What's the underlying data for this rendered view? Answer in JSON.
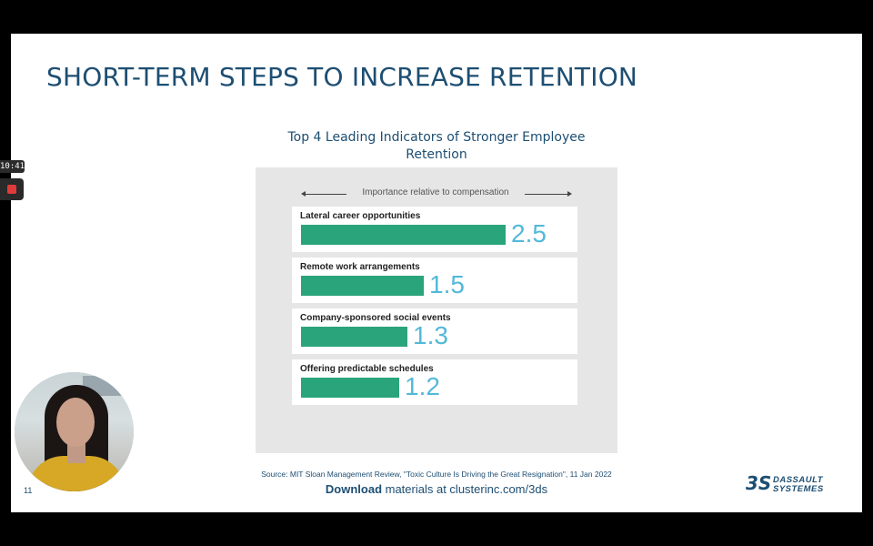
{
  "recorder": {
    "timer": "10:41"
  },
  "slide": {
    "title": "SHORT-TERM STEPS TO INCREASE RETENTION",
    "chart_heading_line1": "Top 4 Leading Indicators of Stronger Employee",
    "chart_heading_line2": "Retention",
    "page_number": "11",
    "source": "Source: MIT Sloan Management Review, \"Toxic Culture Is Driving the Great Resignation\", 11 Jan 2022",
    "download_bold": "Download",
    "download_rest": " materials at clusterinc.com/3ds",
    "logo_line1": "DASSAULT",
    "logo_line2": "SYSTEMES",
    "logo_mark": "3S"
  },
  "chart_data": {
    "type": "bar",
    "orientation": "horizontal",
    "axis_caption": "Importance relative to compensation",
    "categories": [
      "Lateral career opportunities",
      "Remote work arrangements",
      "Company-sponsored social events",
      "Offering predictable schedules"
    ],
    "values": [
      2.5,
      1.5,
      1.3,
      1.2
    ],
    "value_labels": [
      "2.5",
      "1.5",
      "1.3",
      "1.2"
    ],
    "bar_color": "#2aa47a",
    "value_color": "#53b9d9"
  }
}
